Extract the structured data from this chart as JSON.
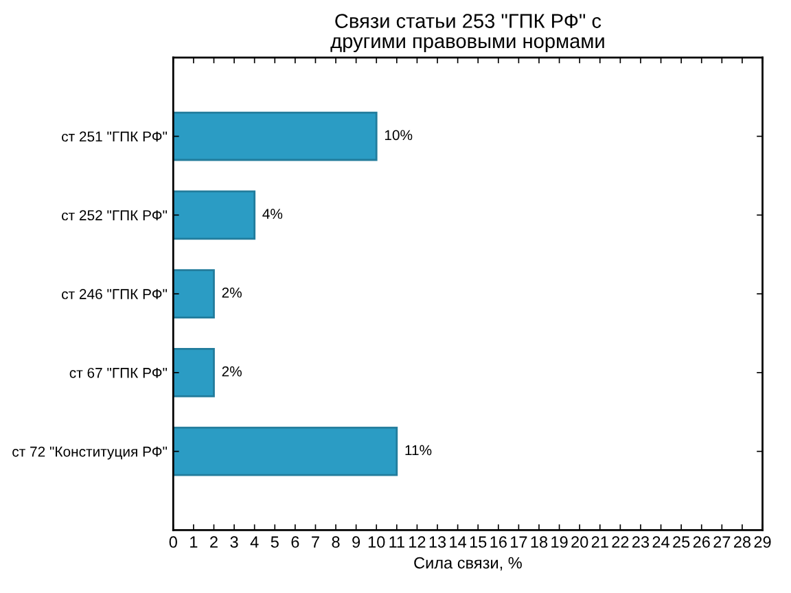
{
  "chart_data": {
    "type": "bar",
    "orientation": "horizontal",
    "title": "Связи статьи 253 \"ГПК РФ\" с\nдругими правовыми нормами",
    "xlabel": "Сила связи, %",
    "categories": [
      "ст 251 \"ГПК РФ\"",
      "ст 252 \"ГПК РФ\"",
      "ст 246 \"ГПК РФ\"",
      "ст 67 \"ГПК РФ\"",
      "ст 72 \"Конституция РФ\""
    ],
    "values": [
      10,
      4,
      2,
      2,
      11
    ],
    "value_labels": [
      "10%",
      "4%",
      "2%",
      "2%",
      "11%"
    ],
    "color": "#2b9cc4",
    "xlim": [
      0,
      29
    ],
    "xticks": [
      0,
      1,
      2,
      3,
      4,
      5,
      6,
      7,
      8,
      9,
      10,
      11,
      12,
      13,
      14,
      15,
      16,
      17,
      18,
      19,
      20,
      21,
      22,
      23,
      24,
      25,
      26,
      27,
      28,
      29
    ]
  }
}
